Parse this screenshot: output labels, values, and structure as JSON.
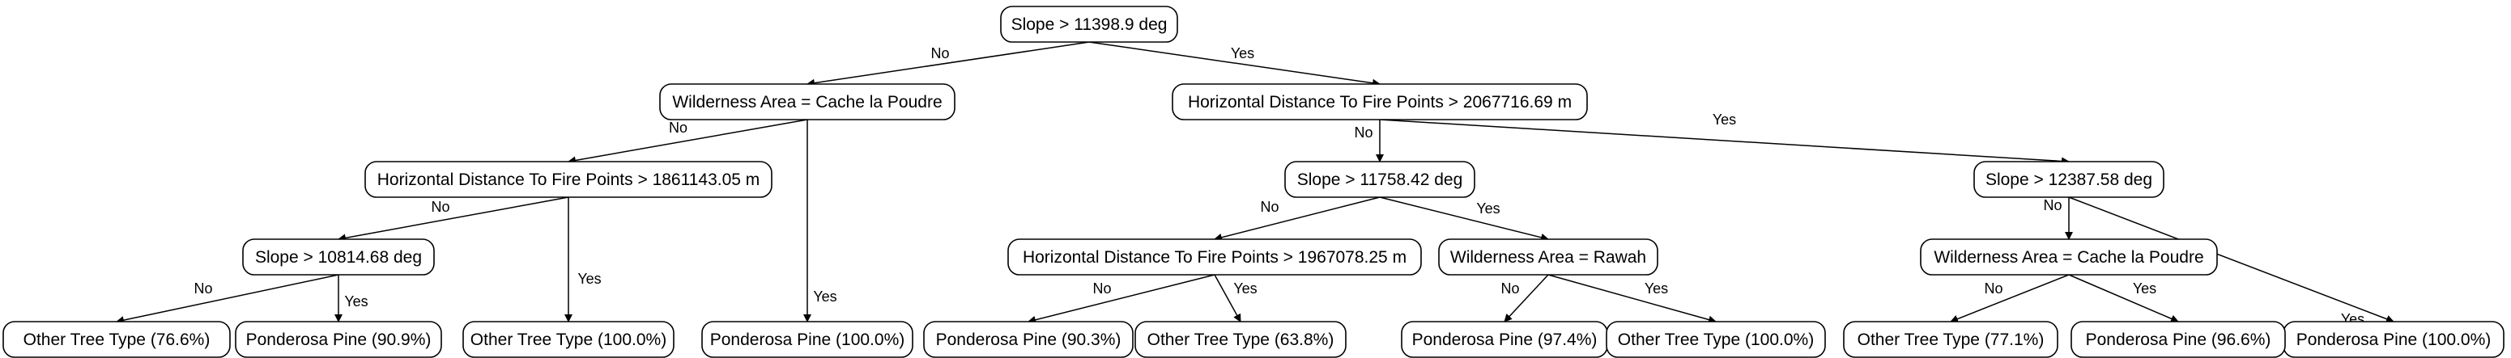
{
  "tree": {
    "nodes": [
      {
        "id": "n0",
        "label": "Slope > 11398.9 deg"
      },
      {
        "id": "n1",
        "label": "Wilderness Area = Cache la Poudre"
      },
      {
        "id": "n2",
        "label": "Horizontal Distance To Fire Points > 2067716.69 m"
      },
      {
        "id": "n3",
        "label": "Horizontal Distance To Fire Points > 1861143.05 m"
      },
      {
        "id": "n4",
        "label": "Ponderosa Pine (100.0%)"
      },
      {
        "id": "n5",
        "label": "Slope > 10814.68 deg"
      },
      {
        "id": "n6",
        "label": "Other Tree Type (100.0%)"
      },
      {
        "id": "n7",
        "label": "Other Tree Type (76.6%)"
      },
      {
        "id": "n8",
        "label": "Ponderosa Pine (90.9%)"
      },
      {
        "id": "n9",
        "label": "Slope > 11758.42 deg"
      },
      {
        "id": "n10",
        "label": "Slope > 12387.58 deg"
      },
      {
        "id": "n11",
        "label": "Horizontal Distance To Fire Points > 1967078.25 m"
      },
      {
        "id": "n12",
        "label": "Wilderness Area = Rawah"
      },
      {
        "id": "n13",
        "label": "Ponderosa Pine (90.3%)"
      },
      {
        "id": "n14",
        "label": "Other Tree Type (63.8%)"
      },
      {
        "id": "n15",
        "label": "Ponderosa Pine (97.4%)"
      },
      {
        "id": "n16",
        "label": "Other Tree Type (100.0%)"
      },
      {
        "id": "n17",
        "label": "Wilderness Area = Cache la Poudre"
      },
      {
        "id": "n18",
        "label": "Ponderosa Pine (100.0%)"
      },
      {
        "id": "n19",
        "label": "Other Tree Type (77.1%)"
      },
      {
        "id": "n20",
        "label": "Ponderosa Pine (96.6%)"
      }
    ],
    "edges": [
      {
        "from": "n0",
        "to": "n1",
        "label": "No"
      },
      {
        "from": "n0",
        "to": "n2",
        "label": "Yes"
      },
      {
        "from": "n1",
        "to": "n3",
        "label": "No"
      },
      {
        "from": "n1",
        "to": "n4",
        "label": "Yes"
      },
      {
        "from": "n3",
        "to": "n5",
        "label": "No"
      },
      {
        "from": "n3",
        "to": "n6",
        "label": "Yes"
      },
      {
        "from": "n5",
        "to": "n7",
        "label": "No"
      },
      {
        "from": "n5",
        "to": "n8",
        "label": "Yes"
      },
      {
        "from": "n2",
        "to": "n9",
        "label": "No"
      },
      {
        "from": "n2",
        "to": "n10",
        "label": "Yes"
      },
      {
        "from": "n9",
        "to": "n11",
        "label": "No"
      },
      {
        "from": "n9",
        "to": "n12",
        "label": "Yes"
      },
      {
        "from": "n11",
        "to": "n13",
        "label": "No"
      },
      {
        "from": "n11",
        "to": "n14",
        "label": "Yes"
      },
      {
        "from": "n12",
        "to": "n15",
        "label": "No"
      },
      {
        "from": "n12",
        "to": "n16",
        "label": "Yes"
      },
      {
        "from": "n10",
        "to": "n17",
        "label": "No"
      },
      {
        "from": "n10",
        "to": "n18",
        "label": "Yes"
      },
      {
        "from": "n17",
        "to": "n19",
        "label": "No"
      },
      {
        "from": "n17",
        "to": "n20",
        "label": "Yes"
      }
    ]
  }
}
